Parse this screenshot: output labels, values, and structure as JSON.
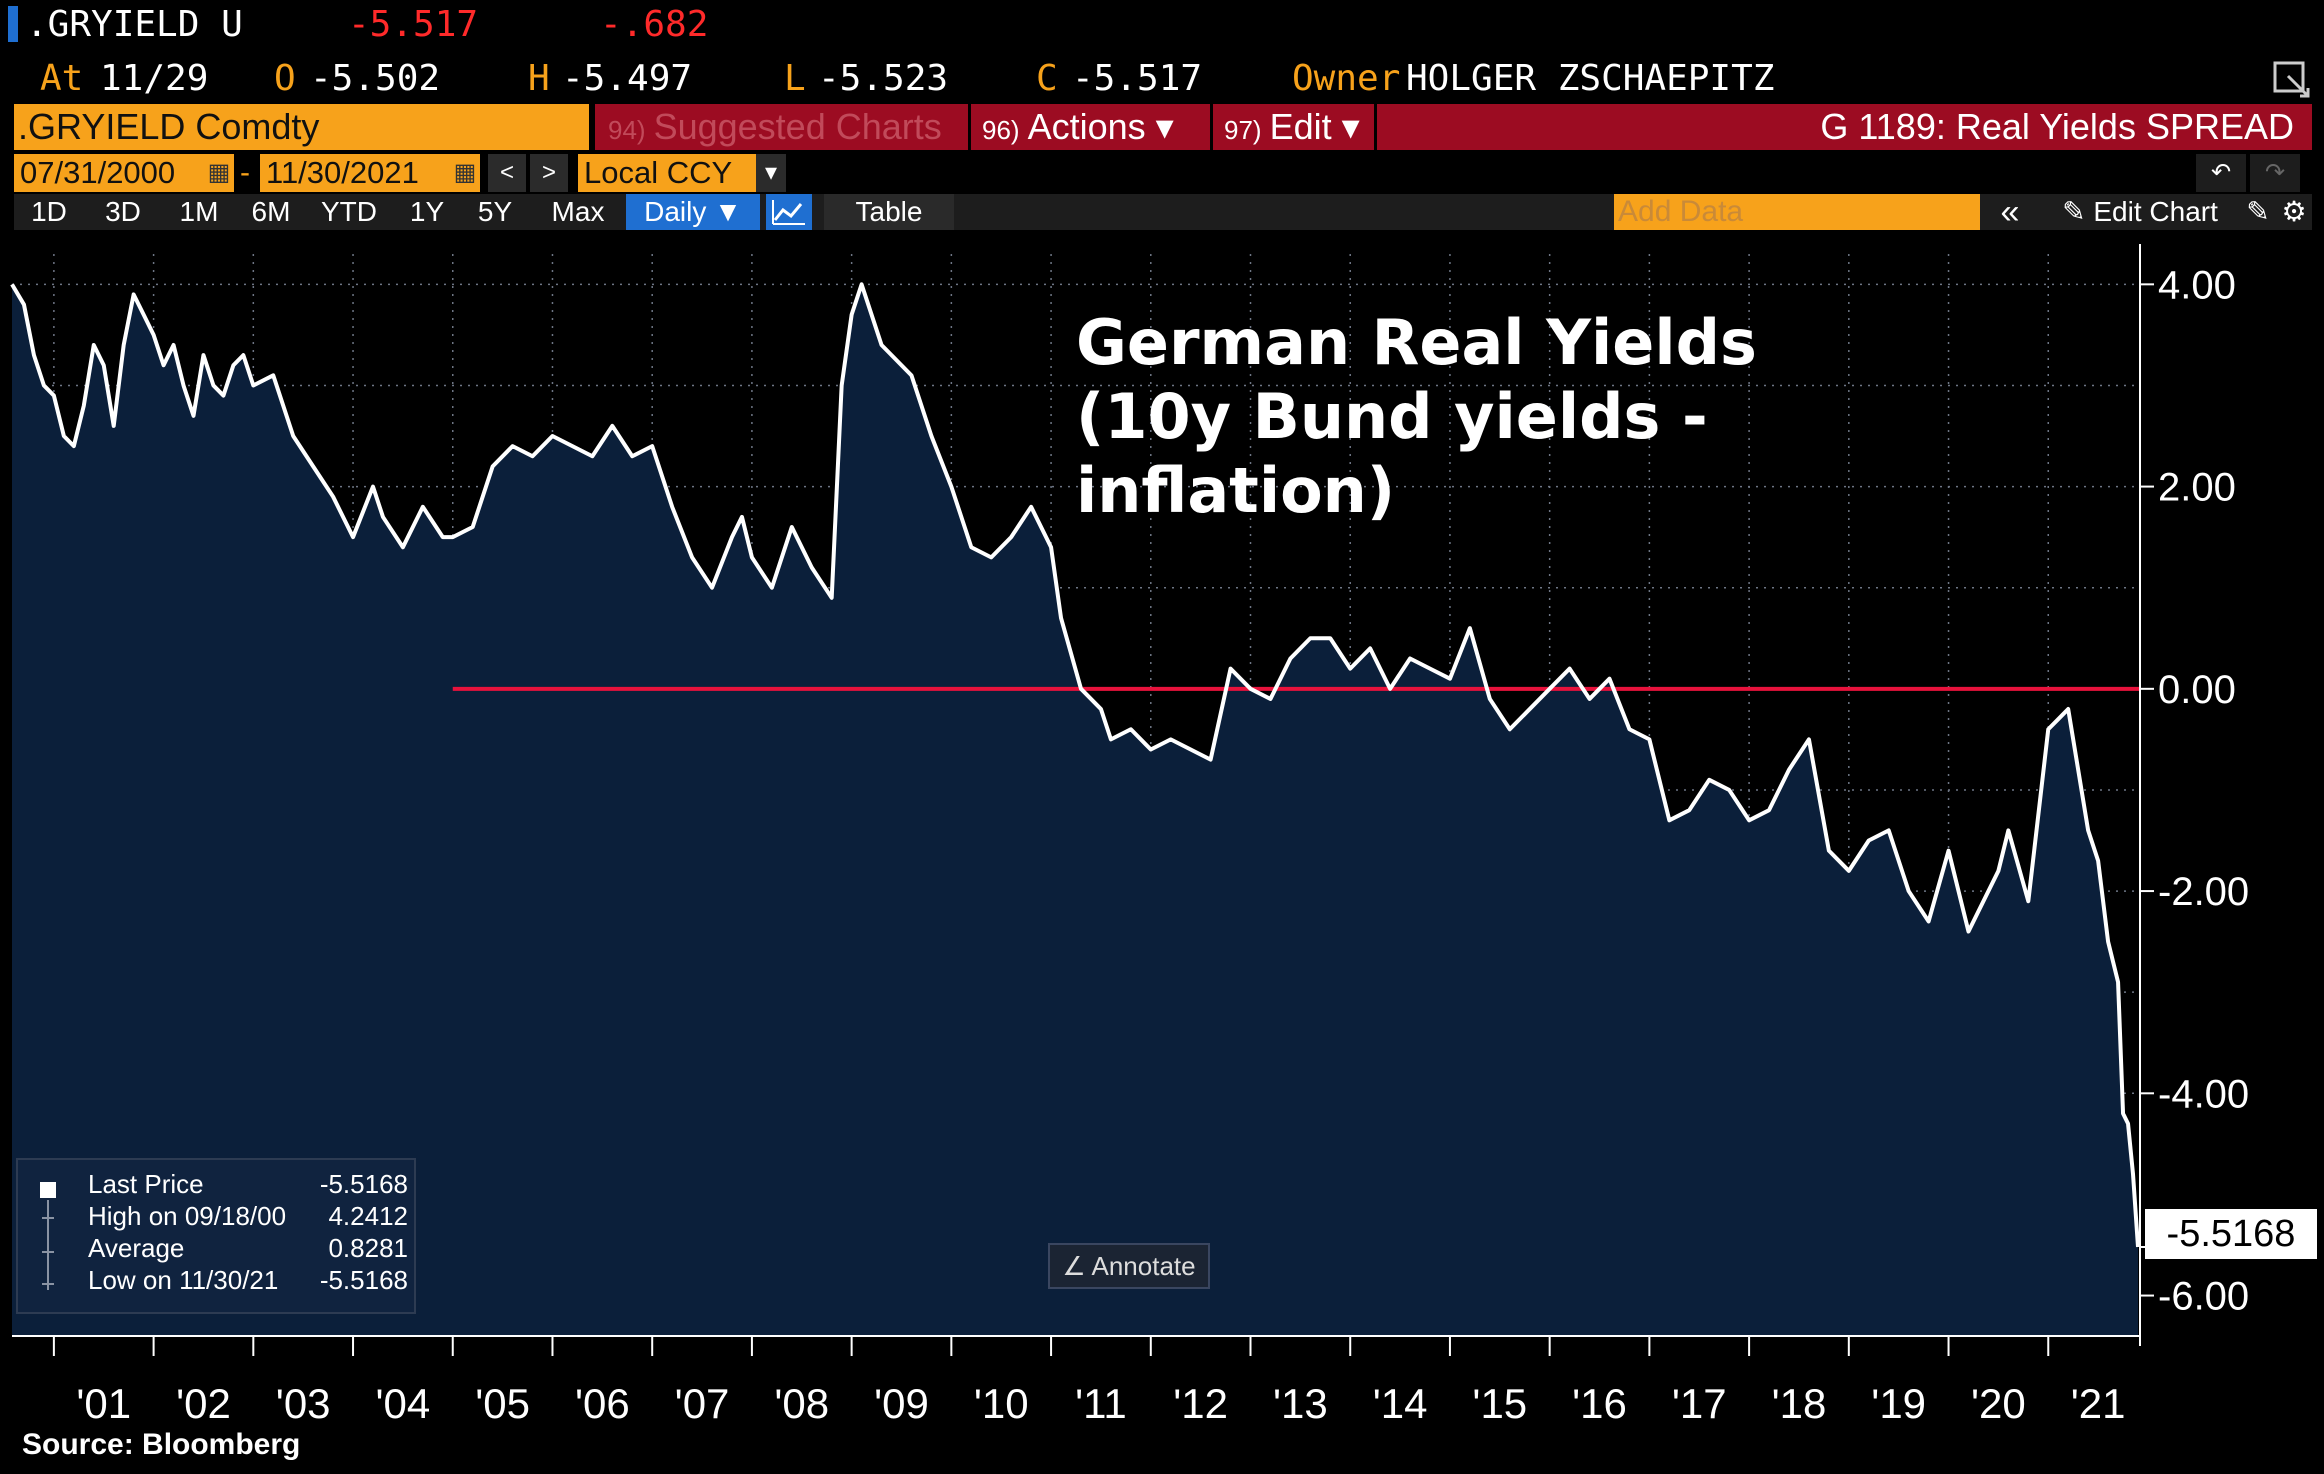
{
  "header": {
    "ticker_short": ".GRYIELD U",
    "last": "-5.517",
    "change": "-.682",
    "at_label": "At",
    "date": "11/29",
    "open_label": "O",
    "open": "-5.502",
    "high_label": "H",
    "high": "-5.497",
    "low_label": "L",
    "low": "-5.523",
    "close_label": "C",
    "close": "-5.517",
    "owner_label": "Owner",
    "owner": "HOLGER ZSCHAEPITZ"
  },
  "toolbar": {
    "security": ".GRYIELD Comdty",
    "suggested_num": "94)",
    "suggested": "Suggested Charts",
    "actions_num": "96)",
    "actions": "Actions ▾",
    "edit_num": "97)",
    "edit": "Edit ▾",
    "chart_id": "G 1189: Real Yields SPREAD"
  },
  "range": {
    "start": "07/31/2000",
    "dash": "-",
    "end": "11/30/2021",
    "prev_icon": "<",
    "next_icon": ">",
    "currency": "Local CCY"
  },
  "periods": [
    "1D",
    "3D",
    "1M",
    "6M",
    "YTD",
    "1Y",
    "5Y",
    "Max"
  ],
  "frequency": "Daily ▼",
  "table_label": "Table",
  "add_data_placeholder": "Add Data",
  "collapse_icon": "«",
  "edit_chart": "Edit Chart",
  "legend": {
    "last_price_label": "Last Price",
    "last_price": "-5.5168",
    "high_label": "High on 09/18/00",
    "high": "4.2412",
    "average_label": "Average",
    "average": "0.8281",
    "low_label": "Low on 11/30/21",
    "low": "-5.5168"
  },
  "annotate": "Annotate",
  "last_value_tag": "-5.5168",
  "source": "Source: Bloomberg",
  "colors": {
    "background": "#000000",
    "plot": "#0b1f3a",
    "line": "#ffffff",
    "zero_line": "#e8123c",
    "accent": "#f7a21b",
    "bar_red": "#9c0c22"
  },
  "chart_data": {
    "type": "area",
    "title": "German Real Yields (10y Bund yields - inflation)",
    "x_tick_labels": [
      "'01",
      "'02",
      "'03",
      "'04",
      "'05",
      "'06",
      "'07",
      "'08",
      "'09",
      "'10",
      "'11",
      "'12",
      "'13",
      "'14",
      "'15",
      "'16",
      "'17",
      "'18",
      "'19",
      "'20",
      "'21"
    ],
    "y_tick_labels": [
      "4.00",
      "2.00",
      "0.00",
      "-2.00",
      "-4.00",
      "-6.00"
    ],
    "ylim": [
      -6.4,
      4.3
    ],
    "xlim": [
      2000.58,
      2021.92
    ],
    "reference_line": {
      "y": 0.0,
      "from_x": 2005.0
    },
    "series": [
      {
        "x": [
          2000.58,
          2000.7,
          2000.8,
          2000.9,
          2001.0,
          2001.1,
          2001.2,
          2001.3,
          2001.4,
          2001.5,
          2001.6,
          2001.7,
          2001.8,
          2001.9,
          2002.0,
          2002.1,
          2002.2,
          2002.3,
          2002.4,
          2002.5,
          2002.6,
          2002.7,
          2002.8,
          2002.9,
          2003.0,
          2003.2,
          2003.4,
          2003.6,
          2003.8,
          2004.0,
          2004.2,
          2004.3,
          2004.5,
          2004.7,
          2004.9,
          2005.0,
          2005.2,
          2005.4,
          2005.6,
          2005.8,
          2006.0,
          2006.2,
          2006.4,
          2006.6,
          2006.8,
          2007.0,
          2007.2,
          2007.4,
          2007.6,
          2007.8,
          2007.9,
          2008.0,
          2008.2,
          2008.4,
          2008.6,
          2008.8,
          2008.9,
          2009.0,
          2009.1,
          2009.3,
          2009.4,
          2009.6,
          2009.8,
          2010.0,
          2010.2,
          2010.4,
          2010.6,
          2010.8,
          2011.0,
          2011.1,
          2011.3,
          2011.5,
          2011.6,
          2011.8,
          2012.0,
          2012.2,
          2012.4,
          2012.6,
          2012.8,
          2013.0,
          2013.2,
          2013.4,
          2013.6,
          2013.8,
          2014.0,
          2014.2,
          2014.4,
          2014.6,
          2014.8,
          2015.0,
          2015.2,
          2015.4,
          2015.6,
          2015.8,
          2016.0,
          2016.2,
          2016.4,
          2016.6,
          2016.8,
          2017.0,
          2017.2,
          2017.4,
          2017.6,
          2017.8,
          2018.0,
          2018.2,
          2018.4,
          2018.6,
          2018.8,
          2019.0,
          2019.2,
          2019.4,
          2019.6,
          2019.8,
          2020.0,
          2020.2,
          2020.3,
          2020.5,
          2020.6,
          2020.8,
          2021.0,
          2021.1,
          2021.2,
          2021.4,
          2021.5,
          2021.6,
          2021.7,
          2021.75,
          2021.8,
          2021.85,
          2021.9
        ],
        "y": [
          4.0,
          3.8,
          3.3,
          3.0,
          2.9,
          2.5,
          2.4,
          2.8,
          3.4,
          3.2,
          2.6,
          3.4,
          3.9,
          3.7,
          3.5,
          3.2,
          3.4,
          3.0,
          2.7,
          3.3,
          3.0,
          2.9,
          3.2,
          3.3,
          3.0,
          3.1,
          2.5,
          2.2,
          1.9,
          1.5,
          2.0,
          1.7,
          1.4,
          1.8,
          1.5,
          1.5,
          1.6,
          2.2,
          2.4,
          2.3,
          2.5,
          2.4,
          2.3,
          2.6,
          2.3,
          2.4,
          1.8,
          1.3,
          1.0,
          1.5,
          1.7,
          1.3,
          1.0,
          1.6,
          1.2,
          0.9,
          3.0,
          3.7,
          4.0,
          3.4,
          3.3,
          3.1,
          2.5,
          2.0,
          1.4,
          1.3,
          1.5,
          1.8,
          1.4,
          0.7,
          0.0,
          -0.2,
          -0.5,
          -0.4,
          -0.6,
          -0.5,
          -0.6,
          -0.7,
          0.2,
          0.0,
          -0.1,
          0.3,
          0.5,
          0.5,
          0.2,
          0.4,
          0.0,
          0.3,
          0.2,
          0.1,
          0.6,
          -0.1,
          -0.4,
          -0.2,
          0.0,
          0.2,
          -0.1,
          0.1,
          -0.4,
          -0.5,
          -1.3,
          -1.2,
          -0.9,
          -1.0,
          -1.3,
          -1.2,
          -0.8,
          -0.5,
          -1.6,
          -1.8,
          -1.5,
          -1.4,
          -2.0,
          -2.3,
          -1.6,
          -2.4,
          -2.2,
          -1.8,
          -1.4,
          -2.1,
          -0.4,
          -0.3,
          -0.2,
          -1.4,
          -1.7,
          -2.5,
          -2.9,
          -4.2,
          -4.3,
          -4.8,
          -5.52
        ]
      }
    ]
  }
}
